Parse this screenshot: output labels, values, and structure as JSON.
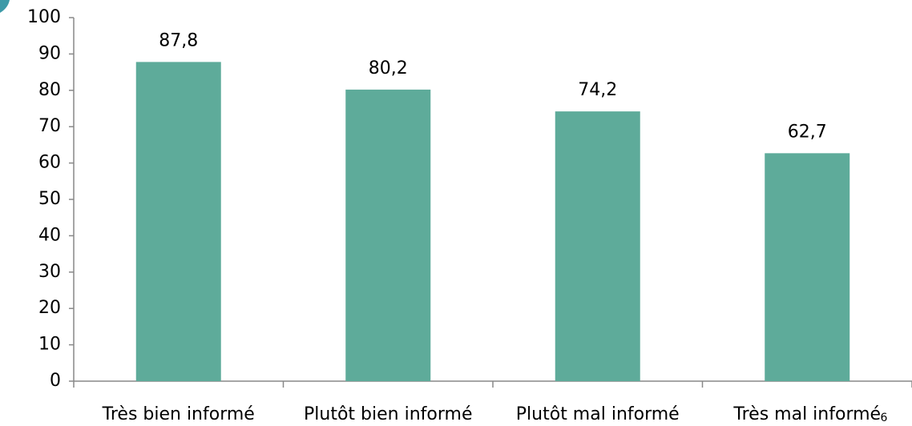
{
  "chart_data": {
    "type": "bar",
    "categories": [
      "Très bien informé",
      "Plutôt bien informé",
      "Plutôt mal informé",
      "Très mal informé"
    ],
    "values": [
      87.8,
      80.2,
      74.2,
      62.7
    ],
    "value_labels": [
      "87,8",
      "80,2",
      "74,2",
      "62,7"
    ],
    "color": "#5eab9a",
    "ylim": [
      0,
      100
    ],
    "yticks": [
      0,
      10,
      20,
      30,
      40,
      50,
      60,
      70,
      80,
      90,
      100
    ],
    "grid": false
  },
  "page_number": "6"
}
